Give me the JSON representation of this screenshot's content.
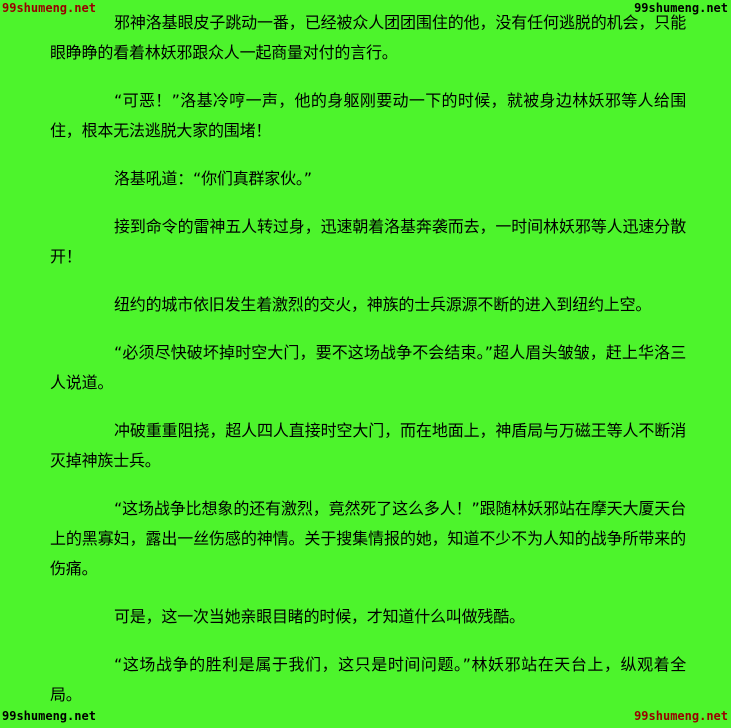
{
  "page": {
    "background_color": "#4DF42C",
    "text_color": "#000000"
  },
  "watermark": {
    "text": "99shumeng.net",
    "dark_red_color": "#990000",
    "black_color": "#000000",
    "positions": [
      "top-left",
      "top-right",
      "bottom-left",
      "bottom-right"
    ]
  },
  "content": {
    "paragraphs": [
      "邪神洛基眼皮子跳动一番，已经被众人团团围住的他，没有任何逃脱的机会，只能眼睁睁的看着林妖邪跟众人一起商量对付的言行。",
      "“可恶！”洛基冷哼一声，他的身躯刚要动一下的时候，就被身边林妖邪等人给围住，根本无法逃脱大家的围堵！",
      "洛基吼道：“你们真群家伙。”",
      "接到命令的雷神五人转过身，迅速朝着洛基奔袭而去，一时间林妖邪等人迅速分散开！",
      "纽约的城市依旧发生着激烈的交火，神族的士兵源源不断的进入到纽约上空。",
      "“必须尽快破坏掉时空大门，要不这场战争不会结束。”超人眉头皱皱，赶上华洛三人说道。",
      "冲破重重阻挠，超人四人直接时空大门，而在地面上，神盾局与万磁王等人不断消灭掉神族士兵。",
      "“这场战争比想象的还有激烈，竟然死了这么多人！”跟随林妖邪站在摩天大厦天台上的黑寡妇，露出一丝伤感的神情。关于搜集情报的她，知道不少不为人知的战争所带来的伤痛。",
      "可是，这一次当她亲眼目睹的时候，才知道什么叫做残酷。",
      "“这场战争的胜利是属于我们，这只是时间问题。”林妖邪站在天台上，纵观着全局。"
    ]
  }
}
